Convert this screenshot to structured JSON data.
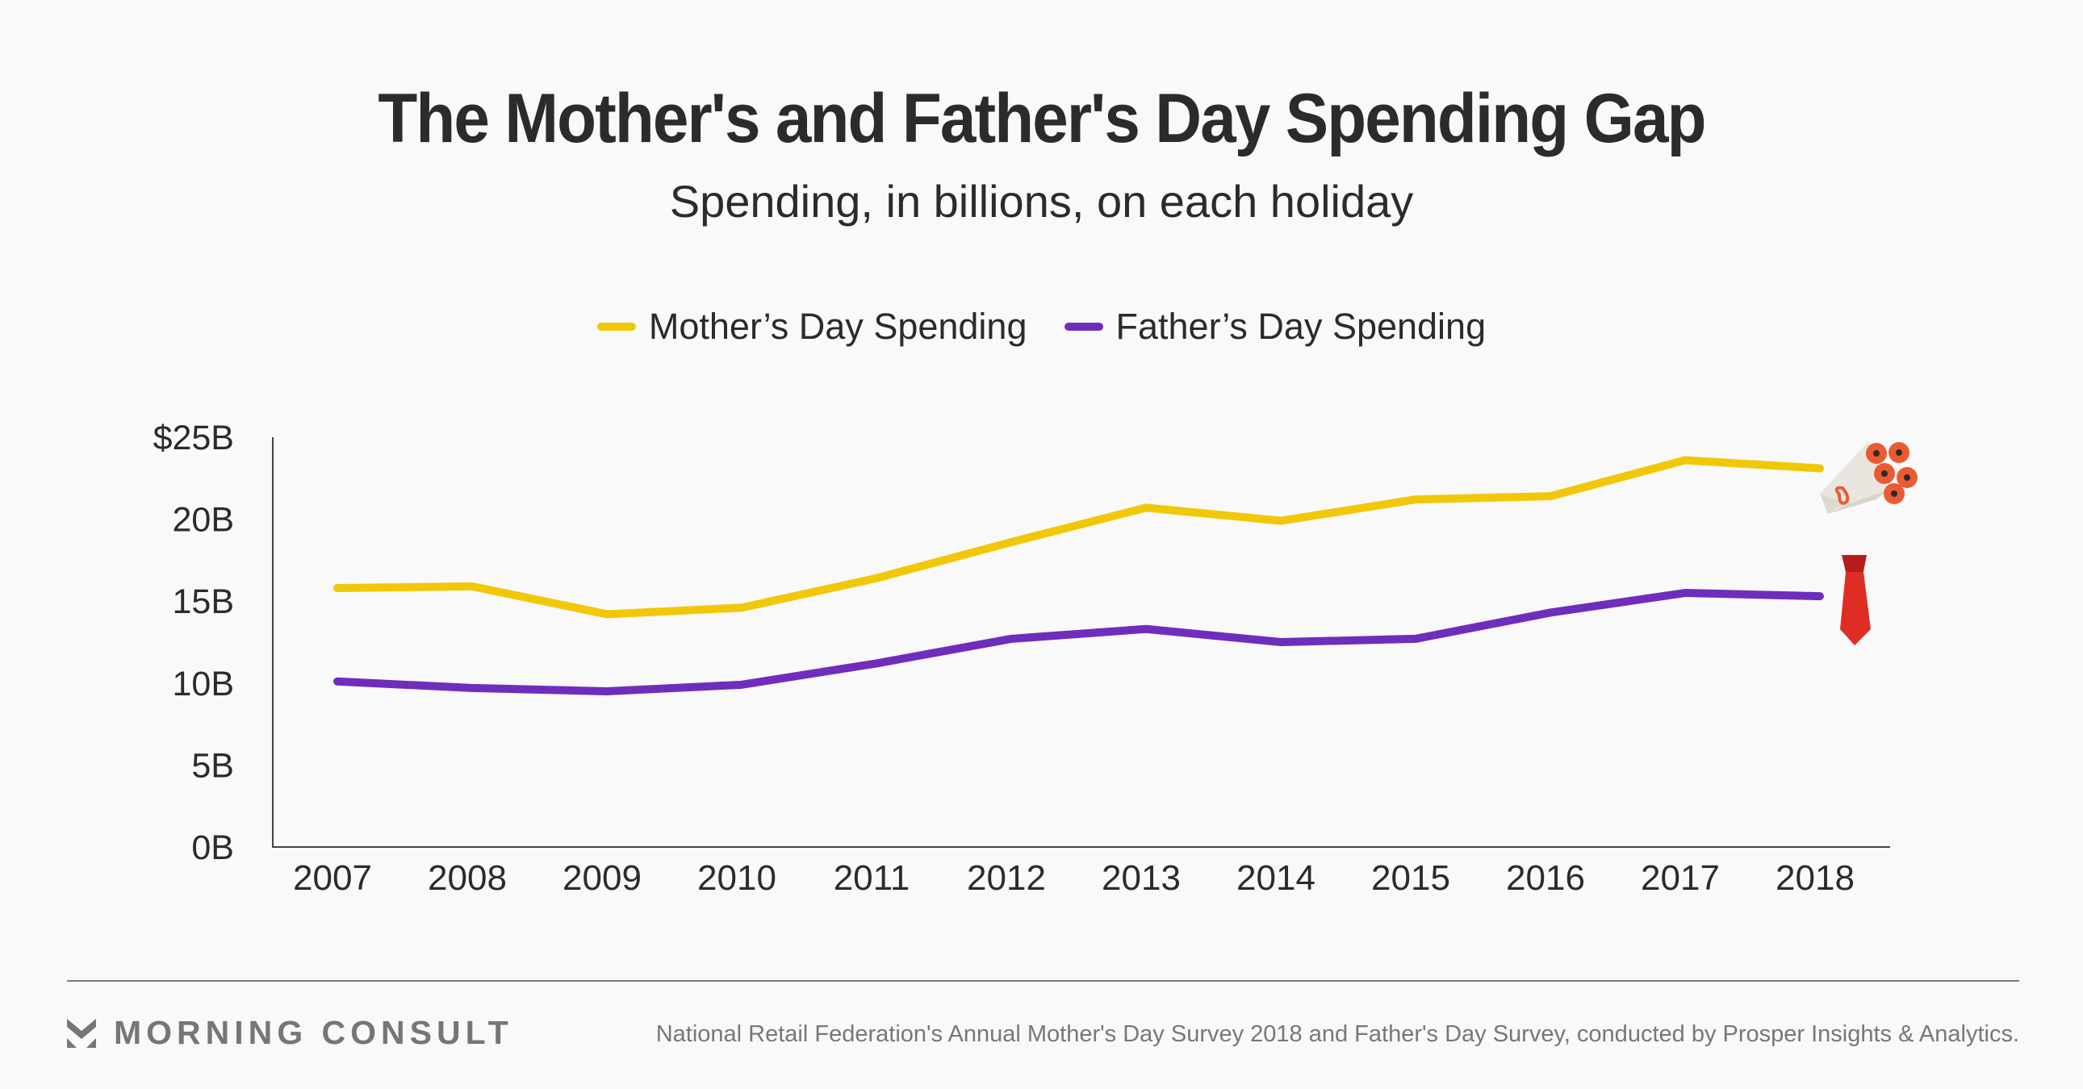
{
  "header": {
    "title": "The Mother's and Father's Day Spending Gap",
    "subtitle": "Spending, in billions, on each holiday"
  },
  "legend": [
    {
      "label": "Mother’s Day Spending",
      "color": "#f0c808"
    },
    {
      "label": "Father’s Day Spending",
      "color": "#6f2dbd"
    }
  ],
  "icons": {
    "mothers_day": "flower-bouquet-icon",
    "fathers_day": "necktie-icon"
  },
  "footer": {
    "brand": "MORNING CONSULT",
    "source": "National Retail Federation's Annual Mother's Day Survey 2018 and Father's Day Survey, conducted by Prosper Insights & Analytics."
  },
  "chart_data": {
    "type": "line",
    "title": "The Mother's and Father's Day Spending Gap",
    "subtitle": "Spending, in billions, on each holiday",
    "xlabel": "",
    "ylabel": "",
    "x": [
      "2007",
      "2008",
      "2009",
      "2010",
      "2011",
      "2012",
      "2013",
      "2014",
      "2015",
      "2016",
      "2017",
      "2018"
    ],
    "ylim": [
      0,
      25
    ],
    "yticks": [
      0,
      5,
      10,
      15,
      20,
      25
    ],
    "ytick_labels": [
      "0B",
      "5B",
      "10B",
      "15B",
      "20B",
      "$25B"
    ],
    "grid": false,
    "legend_position": "top-center",
    "series": [
      {
        "name": "Mother’s Day Spending",
        "color": "#f0c808",
        "values": [
          15.8,
          15.9,
          14.2,
          14.6,
          16.4,
          18.6,
          20.7,
          19.9,
          21.2,
          21.4,
          23.6,
          23.1
        ]
      },
      {
        "name": "Father’s Day Spending",
        "color": "#6f2dbd",
        "values": [
          10.1,
          9.7,
          9.5,
          9.9,
          11.2,
          12.7,
          13.3,
          12.5,
          12.7,
          14.3,
          15.5,
          15.3
        ]
      }
    ]
  }
}
